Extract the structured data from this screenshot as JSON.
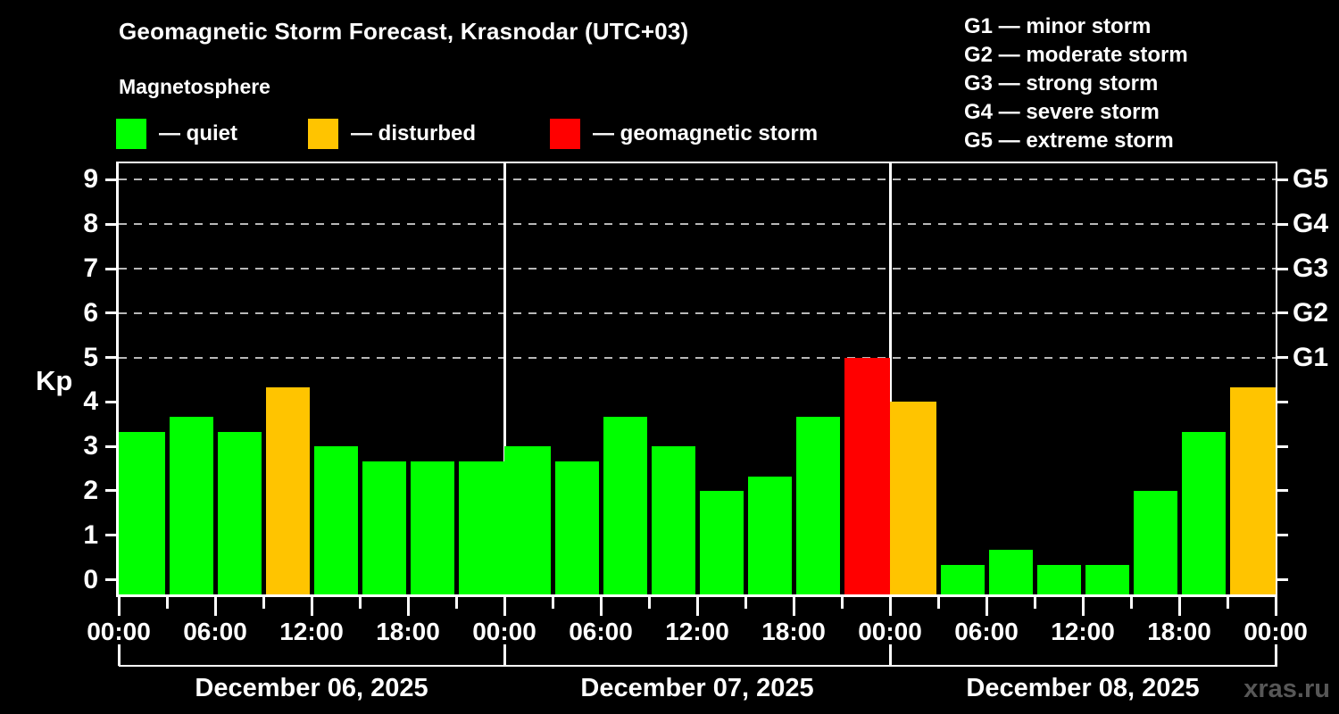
{
  "title": "Geomagnetic Storm Forecast, Krasnodar (UTC+03)",
  "subtitle": "Magnetosphere",
  "legend": [
    {
      "key": "quiet",
      "label": "— quiet"
    },
    {
      "key": "disturbed",
      "label": "— disturbed"
    },
    {
      "key": "storm",
      "label": "— geomagnetic storm"
    }
  ],
  "g_legend": [
    "G1 — minor storm",
    "G2 — moderate storm",
    "G3 — strong storm",
    "G4 — severe storm",
    "G5 — extreme storm"
  ],
  "y_axis": {
    "label": "Kp",
    "ticks": [
      0,
      1,
      2,
      3,
      4,
      5,
      6,
      7,
      8,
      9
    ]
  },
  "right_axis": {
    "labels": [
      {
        "kp": 5,
        "label": "G1"
      },
      {
        "kp": 6,
        "label": "G2"
      },
      {
        "kp": 7,
        "label": "G3"
      },
      {
        "kp": 8,
        "label": "G4"
      },
      {
        "kp": 9,
        "label": "G5"
      }
    ]
  },
  "x_axis": {
    "tick_labels": [
      "00:00",
      "06:00",
      "12:00",
      "18:00",
      "00:00",
      "06:00",
      "12:00",
      "18:00",
      "00:00",
      "06:00",
      "12:00",
      "18:00",
      "00:00"
    ]
  },
  "watermark": "xras.ru",
  "chart_data": {
    "type": "bar",
    "title": "Geomagnetic Storm Forecast, Krasnodar (UTC+03)",
    "subtitle": "Magnetosphere",
    "ylabel": "Kp",
    "ylim": [
      0,
      9
    ],
    "gridlines_at_kp": [
      5,
      6,
      7,
      8,
      9
    ],
    "bar_interval_hours": 3,
    "status_colors": {
      "quiet": "#00ff00",
      "disturbed": "#ffc400",
      "storm": "#ff0000"
    },
    "days": [
      {
        "date": "December 06, 2025",
        "values": [
          3.33,
          3.67,
          3.33,
          4.33,
          3.0,
          2.67,
          2.67,
          2.67
        ],
        "status": [
          "quiet",
          "quiet",
          "quiet",
          "disturbed",
          "quiet",
          "quiet",
          "quiet",
          "quiet"
        ]
      },
      {
        "date": "December 07, 2025",
        "values": [
          3.0,
          2.67,
          3.67,
          3.0,
          2.0,
          2.33,
          3.67,
          5.0
        ],
        "status": [
          "quiet",
          "quiet",
          "quiet",
          "quiet",
          "quiet",
          "quiet",
          "quiet",
          "storm"
        ]
      },
      {
        "date": "December 08, 2025",
        "values": [
          4.0,
          0.33,
          0.67,
          0.33,
          0.33,
          2.0,
          3.33,
          4.33
        ],
        "status": [
          "disturbed",
          "quiet",
          "quiet",
          "quiet",
          "quiet",
          "quiet",
          "quiet",
          "disturbed"
        ]
      }
    ]
  }
}
